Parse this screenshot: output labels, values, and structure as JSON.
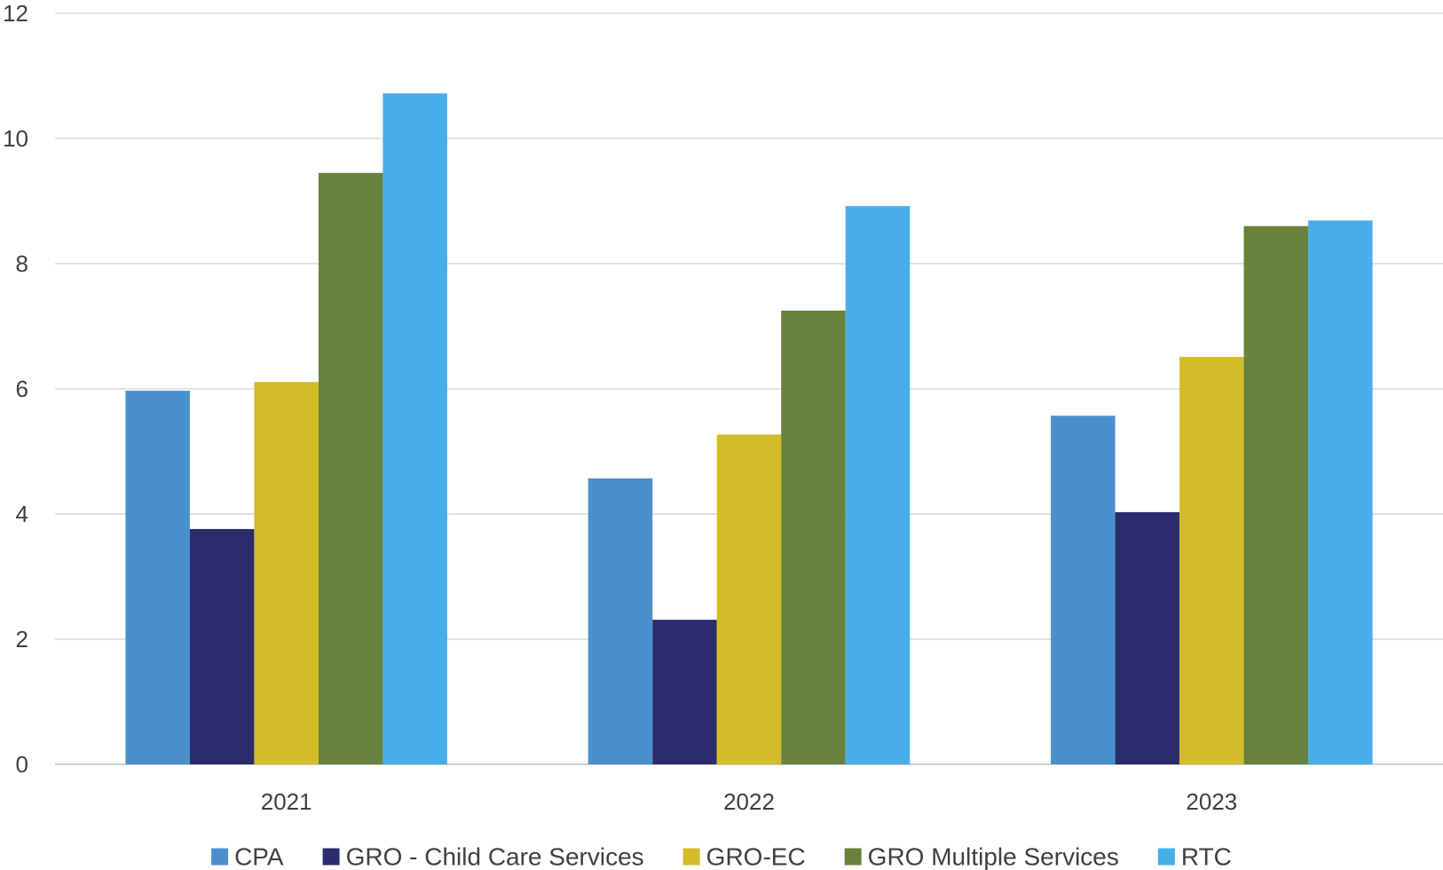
{
  "chart_data": {
    "type": "bar",
    "title": "",
    "xlabel": "",
    "ylabel": "",
    "categories": [
      "2021",
      "2022",
      "2023"
    ],
    "ylim": [
      0,
      12
    ],
    "yticks": [
      0,
      2,
      4,
      6,
      8,
      10,
      12
    ],
    "grid": true,
    "legend_position": "bottom",
    "series": [
      {
        "name": "CPA",
        "color": "#4a8fcc",
        "values": [
          5.97,
          4.57,
          5.57
        ]
      },
      {
        "name": "GRO - Child Care Services",
        "color": "#2b2c6b",
        "values": [
          3.76,
          2.31,
          4.03
        ]
      },
      {
        "name": "GRO-EC",
        "color": "#d2bc27",
        "values": [
          6.11,
          5.27,
          6.51
        ]
      },
      {
        "name": "GRO Multiple Services",
        "color": "#67823a",
        "values": [
          9.45,
          7.25,
          8.6
        ]
      },
      {
        "name": "RTC",
        "color": "#47aeea",
        "values": [
          10.72,
          8.92,
          8.69
        ]
      }
    ]
  }
}
